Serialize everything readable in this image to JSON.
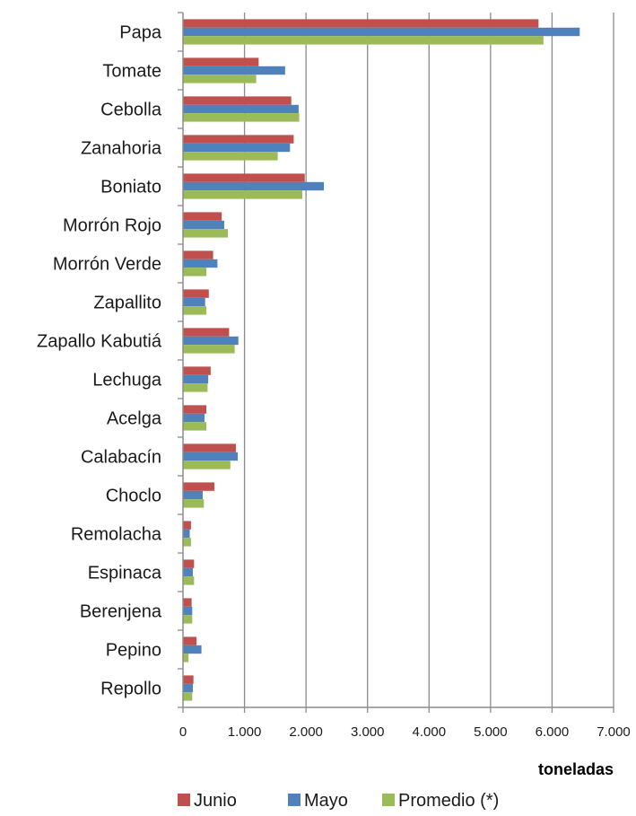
{
  "chart_data": {
    "type": "bar",
    "orientation": "horizontal",
    "title": "",
    "xlabel": "toneladas",
    "ylabel": "",
    "xlim": [
      0,
      7000
    ],
    "x_ticks": [
      0,
      1000,
      2000,
      3000,
      4000,
      5000,
      6000,
      7000
    ],
    "x_tick_labels": [
      "0",
      "1.000",
      "2.000",
      "3.000",
      "4.000",
      "5.000",
      "6.000",
      "7.000"
    ],
    "grid": "vertical",
    "legend_position": "bottom",
    "categories": [
      "Papa",
      "Tomate",
      "Cebolla",
      "Zanahoria",
      "Boniato",
      "Morrón Rojo",
      "Morrón Verde",
      "Zapallito",
      "Zapallo Kabutiá",
      "Lechuga",
      "Acelga",
      "Calabacín",
      "Choclo",
      "Remolacha",
      "Espinaca",
      "Berenjena",
      "Pepino",
      "Repollo"
    ],
    "series": [
      {
        "name": "Junio",
        "color": "#c0504d",
        "values": [
          5780,
          1230,
          1760,
          1800,
          1980,
          630,
          490,
          420,
          750,
          450,
          380,
          860,
          510,
          130,
          180,
          140,
          220,
          170
        ]
      },
      {
        "name": "Mayo",
        "color": "#4f81bd",
        "values": [
          6450,
          1660,
          1880,
          1740,
          2290,
          670,
          560,
          360,
          900,
          410,
          350,
          890,
          320,
          110,
          160,
          150,
          300,
          160
        ]
      },
      {
        "name": "Promedio (*)",
        "color": "#9bbb59",
        "values": [
          5860,
          1190,
          1890,
          1540,
          1940,
          730,
          380,
          380,
          840,
          400,
          380,
          770,
          340,
          130,
          180,
          150,
          90,
          150
        ]
      }
    ]
  }
}
